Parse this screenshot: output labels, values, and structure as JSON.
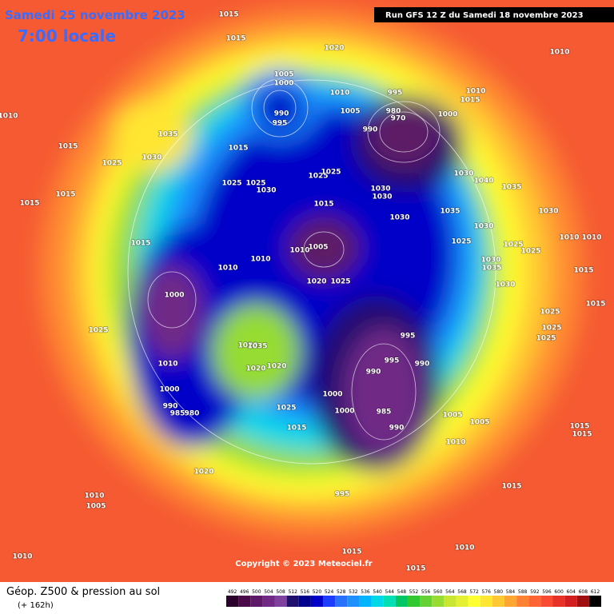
{
  "header": {
    "date": "Samedi 25 novembre 2023",
    "time": "7:00 locale",
    "run": "Run GFS 12 Z du Samedi 18 novembre 2023"
  },
  "footer": {
    "title": "Géop. Z500 & pression au sol",
    "lead": "(+ 162h)",
    "copyright": "Copyright © 2023 Meteociel.fr"
  },
  "pressure_labels": [
    1015,
    1015,
    1020,
    1010,
    1010,
    1005,
    1000,
    1010,
    995,
    1010,
    1015,
    990,
    995,
    1005,
    980,
    970,
    1000,
    990,
    1035,
    1015,
    1030,
    1025,
    1015,
    1025,
    1025,
    1030,
    1025,
    1025,
    1030,
    1030,
    1030,
    1040,
    1035,
    1015,
    1015,
    1015,
    1030,
    1035,
    1030,
    1030,
    1025,
    1025,
    1025,
    1015,
    1010,
    1005,
    1010,
    1010,
    1030,
    1035,
    1030,
    1020,
    1025,
    1000,
    995,
    995,
    990,
    990,
    1025,
    1025,
    1025,
    1025,
    1020,
    1035,
    1020,
    1020,
    1010,
    1000,
    1000,
    1000,
    985,
    990,
    990,
    985,
    980,
    1025,
    1015,
    1005,
    1005,
    1010,
    1020,
    1015,
    995,
    1010,
    1005,
    1010,
    1015,
    1010,
    1015,
    1010,
    1010,
    1015,
    1015,
    1015,
    1015
  ],
  "colorbar": {
    "labels": [
      492,
      496,
      500,
      504,
      508,
      512,
      516,
      520,
      524,
      528,
      532,
      536,
      540,
      544,
      548,
      552,
      556,
      560,
      564,
      568,
      572,
      576,
      580,
      584,
      588,
      592,
      596,
      600,
      604,
      608,
      612
    ],
    "colors": [
      "#2a002a",
      "#4a0a4a",
      "#5e1a66",
      "#702a86",
      "#8040a0",
      "#20106e",
      "#00008c",
      "#0000c8",
      "#1e3cff",
      "#2870ff",
      "#1e90ff",
      "#00b4ff",
      "#00d8e8",
      "#00e0b4",
      "#00c864",
      "#32c832",
      "#64d232",
      "#96dc32",
      "#c8e632",
      "#e6f032",
      "#ffff32",
      "#ffe632",
      "#ffc832",
      "#ffa532",
      "#ff8232",
      "#ff6432",
      "#f84b32",
      "#e83228",
      "#d21e1e",
      "#a00f0f",
      "#000000"
    ]
  }
}
